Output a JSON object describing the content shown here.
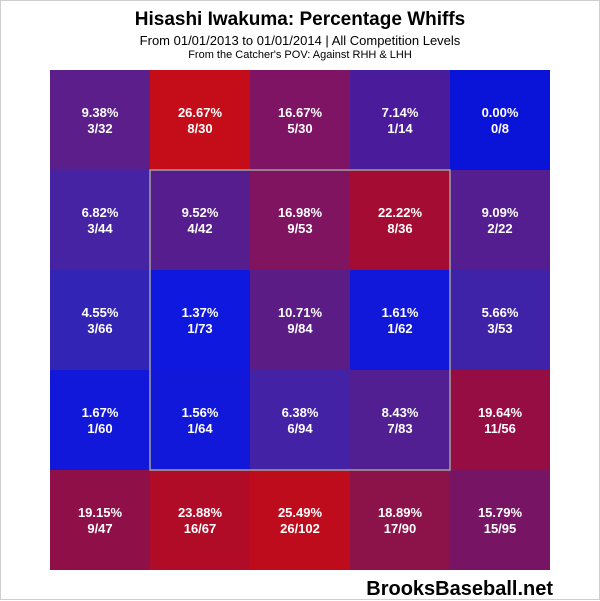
{
  "chart_data": {
    "type": "heatmap",
    "title": "Hisashi Iwakuma: Percentage Whiffs",
    "subtitle": "From 01/01/2013 to 01/01/2014 | All Competition Levels",
    "subtitle2": "From the Catcher's POV:  Against RHH & LHH",
    "rows": 5,
    "cols": 5,
    "cells": [
      [
        {
          "pct": "9.38%",
          "frac": "3/32",
          "value": 9.38,
          "color": "#5b1e8a"
        },
        {
          "pct": "26.67%",
          "frac": "8/30",
          "value": 26.67,
          "color": "#c40d19"
        },
        {
          "pct": "16.67%",
          "frac": "5/30",
          "value": 16.67,
          "color": "#7e1463"
        },
        {
          "pct": "7.14%",
          "frac": "1/14",
          "value": 7.14,
          "color": "#4a1c9c"
        },
        {
          "pct": "0.00%",
          "frac": "0/8",
          "value": 0.0,
          "color": "#0a13d8"
        }
      ],
      [
        {
          "pct": "6.82%",
          "frac": "3/44",
          "value": 6.82,
          "color": "#4623a3"
        },
        {
          "pct": "9.52%",
          "frac": "4/42",
          "value": 9.52,
          "color": "#561d8e"
        },
        {
          "pct": "16.98%",
          "frac": "9/53",
          "value": 16.98,
          "color": "#811461"
        },
        {
          "pct": "22.22%",
          "frac": "8/36",
          "value": 22.22,
          "color": "#a40c33"
        },
        {
          "pct": "9.09%",
          "frac": "2/22",
          "value": 9.09,
          "color": "#541e90"
        }
      ],
      [
        {
          "pct": "4.55%",
          "frac": "3/66",
          "value": 4.55,
          "color": "#3224b5"
        },
        {
          "pct": "1.37%",
          "frac": "1/73",
          "value": 1.37,
          "color": "#0f18de"
        },
        {
          "pct": "10.71%",
          "frac": "9/84",
          "value": 10.71,
          "color": "#5c1c86"
        },
        {
          "pct": "1.61%",
          "frac": "1/62",
          "value": 1.61,
          "color": "#1118d9"
        },
        {
          "pct": "5.66%",
          "frac": "3/53",
          "value": 5.66,
          "color": "#3e23a8"
        }
      ],
      [
        {
          "pct": "1.67%",
          "frac": "1/60",
          "value": 1.67,
          "color": "#1218d9"
        },
        {
          "pct": "1.56%",
          "frac": "1/64",
          "value": 1.56,
          "color": "#1118d9"
        },
        {
          "pct": "6.38%",
          "frac": "6/94",
          "value": 6.38,
          "color": "#4322a6"
        },
        {
          "pct": "8.43%",
          "frac": "7/83",
          "value": 8.43,
          "color": "#521f92"
        },
        {
          "pct": "19.64%",
          "frac": "11/56",
          "value": 19.64,
          "color": "#950d43"
        }
      ],
      [
        {
          "pct": "19.15%",
          "frac": "9/47",
          "value": 19.15,
          "color": "#8f1048"
        },
        {
          "pct": "23.88%",
          "frac": "16/67",
          "value": 23.88,
          "color": "#b10c27"
        },
        {
          "pct": "25.49%",
          "frac": "26/102",
          "value": 25.49,
          "color": "#be0c1d"
        },
        {
          "pct": "18.89%",
          "frac": "17/90",
          "value": 18.89,
          "color": "#8c124a"
        },
        {
          "pct": "15.79%",
          "frac": "15/95",
          "value": 15.79,
          "color": "#771464"
        }
      ]
    ]
  },
  "zone_outline_color": "#a0a0a0",
  "brand": "BrooksBaseball.net"
}
